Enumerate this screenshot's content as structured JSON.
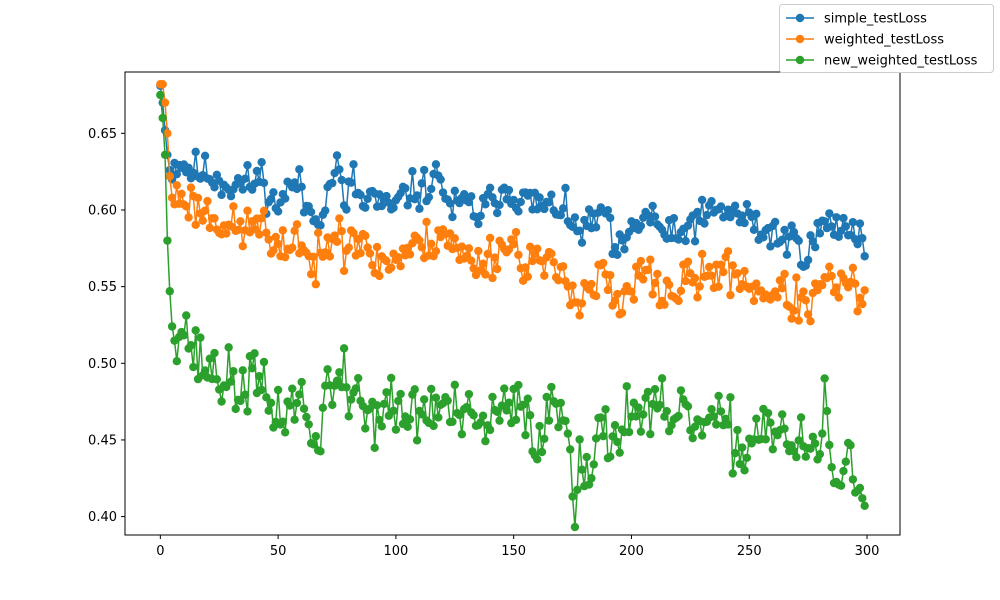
{
  "chart_data": {
    "type": "line",
    "title": "",
    "xlabel": "",
    "ylabel": "",
    "xlim": [
      -15,
      314
    ],
    "ylim": [
      0.388,
      0.69
    ],
    "x_ticks": [
      0,
      50,
      100,
      150,
      200,
      250,
      300
    ],
    "x_tick_labels": [
      "0",
      "50",
      "100",
      "150",
      "200",
      "250",
      "300"
    ],
    "y_ticks": [
      0.4,
      0.45,
      0.5,
      0.55,
      0.6,
      0.65
    ],
    "y_tick_labels": [
      "0.40",
      "0.45",
      "0.50",
      "0.55",
      "0.60",
      "0.65"
    ],
    "grid": false,
    "legend_position": "top-right outside plot",
    "markers": "circle",
    "n_points": 300,
    "series": [
      {
        "name": "simple_testLoss",
        "color": "#1f77b4",
        "anchors": [
          [
            0,
            0.681
          ],
          [
            1,
            0.67
          ],
          [
            2,
            0.652
          ],
          [
            3,
            0.636
          ],
          [
            4,
            0.626
          ],
          [
            8,
            0.632
          ],
          [
            12,
            0.627
          ],
          [
            20,
            0.624
          ],
          [
            30,
            0.616
          ],
          [
            40,
            0.618
          ],
          [
            44,
            0.624
          ],
          [
            46,
            0.604
          ],
          [
            50,
            0.605
          ],
          [
            55,
            0.614
          ],
          [
            58,
            0.619
          ],
          [
            62,
            0.601
          ],
          [
            65,
            0.598
          ],
          [
            70,
            0.602
          ],
          [
            73,
            0.623
          ],
          [
            75,
            0.631
          ],
          [
            78,
            0.602
          ],
          [
            82,
            0.62
          ],
          [
            86,
            0.602
          ],
          [
            90,
            0.61
          ],
          [
            95,
            0.6
          ],
          [
            100,
            0.602
          ],
          [
            105,
            0.612
          ],
          [
            110,
            0.612
          ],
          [
            115,
            0.618
          ],
          [
            119,
            0.622
          ],
          [
            123,
            0.6
          ],
          [
            130,
            0.604
          ],
          [
            135,
            0.597
          ],
          [
            140,
            0.604
          ],
          [
            145,
            0.614
          ],
          [
            150,
            0.612
          ],
          [
            155,
            0.605
          ],
          [
            160,
            0.604
          ],
          [
            165,
            0.6
          ],
          [
            170,
            0.604
          ],
          [
            175,
            0.587
          ],
          [
            180,
            0.588
          ],
          [
            185,
            0.59
          ],
          [
            188,
            0.604
          ],
          [
            192,
            0.575
          ],
          [
            196,
            0.572
          ],
          [
            200,
            0.585
          ],
          [
            205,
            0.596
          ],
          [
            210,
            0.594
          ],
          [
            215,
            0.583
          ],
          [
            220,
            0.58
          ],
          [
            225,
            0.592
          ],
          [
            230,
            0.594
          ],
          [
            235,
            0.598
          ],
          [
            240,
            0.6
          ],
          [
            245,
            0.596
          ],
          [
            250,
            0.595
          ],
          [
            255,
            0.585
          ],
          [
            260,
            0.586
          ],
          [
            265,
            0.58
          ],
          [
            270,
            0.581
          ],
          [
            275,
            0.57
          ],
          [
            280,
            0.588
          ],
          [
            285,
            0.59
          ],
          [
            290,
            0.588
          ],
          [
            295,
            0.59
          ],
          [
            299,
            0.578
          ]
        ],
        "noise": 0.006,
        "seed": 11
      },
      {
        "name": "weighted_testLoss",
        "color": "#ff7f0e",
        "anchors": [
          [
            0,
            0.682
          ],
          [
            1,
            0.682
          ],
          [
            2,
            0.67
          ],
          [
            3,
            0.65
          ],
          [
            4,
            0.622
          ],
          [
            5,
            0.608
          ],
          [
            10,
            0.609
          ],
          [
            15,
            0.602
          ],
          [
            20,
            0.598
          ],
          [
            25,
            0.594
          ],
          [
            30,
            0.588
          ],
          [
            35,
            0.586
          ],
          [
            40,
            0.591
          ],
          [
            43,
            0.596
          ],
          [
            47,
            0.572
          ],
          [
            50,
            0.57
          ],
          [
            55,
            0.58
          ],
          [
            58,
            0.586
          ],
          [
            62,
            0.57
          ],
          [
            65,
            0.562
          ],
          [
            70,
            0.571
          ],
          [
            74,
            0.59
          ],
          [
            76,
            0.605
          ],
          [
            78,
            0.572
          ],
          [
            82,
            0.588
          ],
          [
            86,
            0.574
          ],
          [
            90,
            0.568
          ],
          [
            95,
            0.566
          ],
          [
            100,
            0.568
          ],
          [
            105,
            0.574
          ],
          [
            110,
            0.576
          ],
          [
            115,
            0.58
          ],
          [
            120,
            0.588
          ],
          [
            125,
            0.574
          ],
          [
            130,
            0.568
          ],
          [
            135,
            0.566
          ],
          [
            140,
            0.57
          ],
          [
            145,
            0.576
          ],
          [
            150,
            0.578
          ],
          [
            155,
            0.566
          ],
          [
            160,
            0.568
          ],
          [
            165,
            0.56
          ],
          [
            170,
            0.56
          ],
          [
            175,
            0.552
          ],
          [
            177,
            0.538
          ],
          [
            180,
            0.548
          ],
          [
            185,
            0.55
          ],
          [
            188,
            0.562
          ],
          [
            192,
            0.54
          ],
          [
            196,
            0.535
          ],
          [
            200,
            0.548
          ],
          [
            205,
            0.56
          ],
          [
            210,
            0.552
          ],
          [
            215,
            0.545
          ],
          [
            220,
            0.548
          ],
          [
            225,
            0.556
          ],
          [
            230,
            0.554
          ],
          [
            235,
            0.56
          ],
          [
            240,
            0.56
          ],
          [
            245,
            0.558
          ],
          [
            250,
            0.552
          ],
          [
            255,
            0.546
          ],
          [
            260,
            0.548
          ],
          [
            265,
            0.544
          ],
          [
            270,
            0.54
          ],
          [
            275,
            0.536
          ],
          [
            280,
            0.548
          ],
          [
            285,
            0.553
          ],
          [
            290,
            0.55
          ],
          [
            295,
            0.548
          ],
          [
            299,
            0.538
          ]
        ],
        "noise": 0.007,
        "seed": 23
      },
      {
        "name": "new_weighted_testLoss",
        "color": "#2ca02c",
        "anchors": [
          [
            0,
            0.675
          ],
          [
            1,
            0.66
          ],
          [
            2,
            0.636
          ],
          [
            3,
            0.58
          ],
          [
            4,
            0.547
          ],
          [
            5,
            0.524
          ],
          [
            8,
            0.524
          ],
          [
            12,
            0.52
          ],
          [
            14,
            0.505
          ],
          [
            18,
            0.5
          ],
          [
            22,
            0.496
          ],
          [
            26,
            0.49
          ],
          [
            30,
            0.487
          ],
          [
            34,
            0.481
          ],
          [
            38,
            0.492
          ],
          [
            42,
            0.485
          ],
          [
            46,
            0.472
          ],
          [
            50,
            0.468
          ],
          [
            55,
            0.47
          ],
          [
            58,
            0.481
          ],
          [
            62,
            0.468
          ],
          [
            65,
            0.44
          ],
          [
            68,
            0.46
          ],
          [
            70,
            0.486
          ],
          [
            72,
            0.484
          ],
          [
            75,
            0.476
          ],
          [
            77,
            0.495
          ],
          [
            80,
            0.474
          ],
          [
            83,
            0.49
          ],
          [
            86,
            0.47
          ],
          [
            90,
            0.465
          ],
          [
            95,
            0.472
          ],
          [
            100,
            0.468
          ],
          [
            105,
            0.466
          ],
          [
            110,
            0.468
          ],
          [
            115,
            0.47
          ],
          [
            120,
            0.472
          ],
          [
            125,
            0.466
          ],
          [
            130,
            0.462
          ],
          [
            135,
            0.458
          ],
          [
            140,
            0.462
          ],
          [
            145,
            0.468
          ],
          [
            150,
            0.468
          ],
          [
            155,
            0.47
          ],
          [
            158,
            0.46
          ],
          [
            160,
            0.44
          ],
          [
            163,
            0.47
          ],
          [
            167,
            0.468
          ],
          [
            170,
            0.47
          ],
          [
            173,
            0.46
          ],
          [
            176,
            0.41
          ],
          [
            178,
            0.446
          ],
          [
            182,
            0.432
          ],
          [
            186,
            0.45
          ],
          [
            190,
            0.45
          ],
          [
            195,
            0.46
          ],
          [
            200,
            0.47
          ],
          [
            205,
            0.468
          ],
          [
            210,
            0.468
          ],
          [
            215,
            0.462
          ],
          [
            220,
            0.46
          ],
          [
            225,
            0.465
          ],
          [
            230,
            0.458
          ],
          [
            235,
            0.462
          ],
          [
            240,
            0.456
          ],
          [
            245,
            0.446
          ],
          [
            250,
            0.448
          ],
          [
            255,
            0.46
          ],
          [
            260,
            0.462
          ],
          [
            265,
            0.452
          ],
          [
            270,
            0.442
          ],
          [
            275,
            0.444
          ],
          [
            280,
            0.44
          ],
          [
            282,
            0.47
          ],
          [
            285,
            0.436
          ],
          [
            288,
            0.425
          ],
          [
            292,
            0.432
          ],
          [
            295,
            0.425
          ],
          [
            299,
            0.425
          ]
        ],
        "noise": 0.01,
        "seed": 37
      }
    ]
  }
}
